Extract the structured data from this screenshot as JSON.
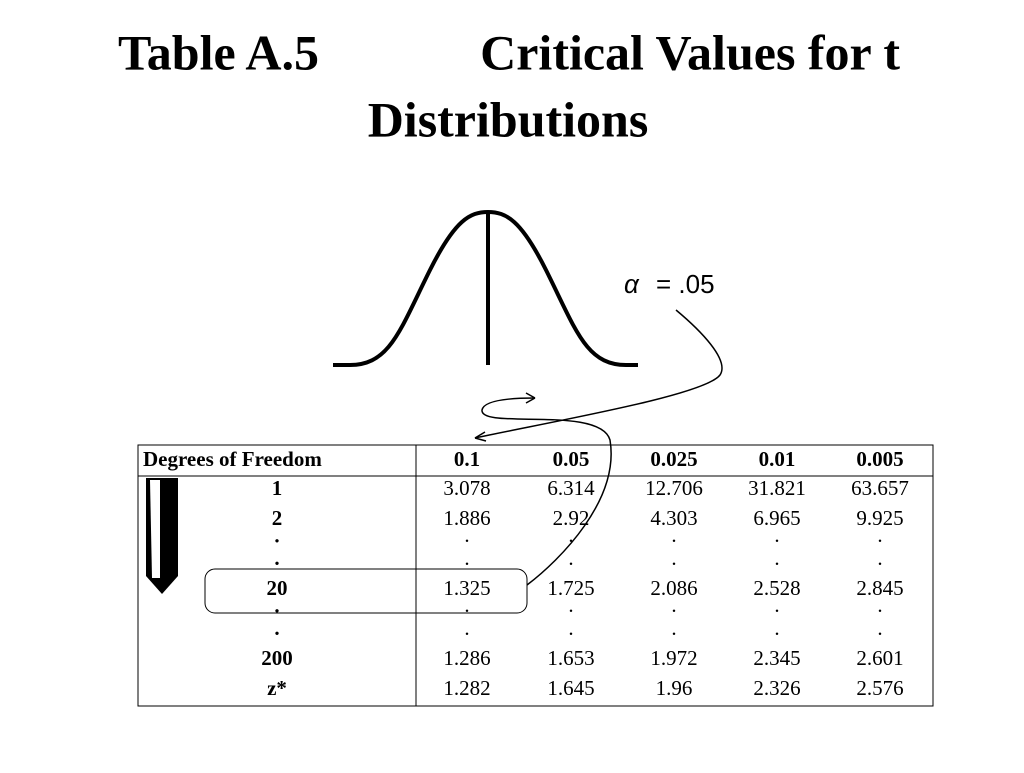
{
  "header": {
    "label": "Table A.5",
    "title": "Critical Values for t",
    "title_line2": "Distributions"
  },
  "annotation": {
    "symbol": "α",
    "text": "= .05"
  },
  "table": {
    "columns": [
      "Degrees of Freedom",
      "0.1",
      "0.05",
      "0.025",
      "0.01",
      "0.005"
    ],
    "rows": [
      [
        "1",
        "3.078",
        "6.314",
        "12.706",
        "31.821",
        "63.657"
      ],
      [
        "2",
        "1.886",
        "2.92",
        "4.303",
        "6.965",
        "9.925"
      ],
      [
        "·",
        "·",
        "·",
        "·",
        "·",
        "·"
      ],
      [
        ".",
        ".",
        ".",
        ".",
        ".",
        "."
      ],
      [
        "20",
        "1.325",
        "1.725",
        "2.086",
        "2.528",
        "2.845"
      ],
      [
        "·",
        "·",
        "·",
        "·",
        "·",
        "·"
      ],
      [
        ".",
        ".",
        ".",
        ".",
        ".",
        "."
      ],
      [
        "200",
        "1.286",
        "1.653",
        "1.972",
        "2.345",
        "2.601"
      ],
      [
        "z*",
        "1.282",
        "1.645",
        "1.96",
        "2.326",
        "2.576"
      ]
    ]
  }
}
